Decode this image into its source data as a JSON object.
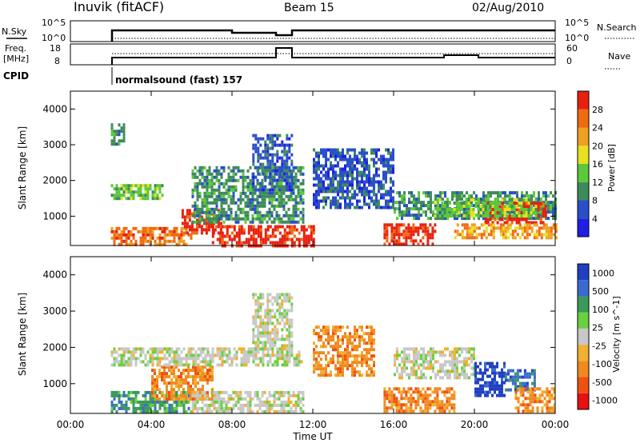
{
  "header": {
    "station": "Inuvik (fitACF)",
    "beam": "Beam 15",
    "date": "02/Aug/2010"
  },
  "top_panels": {
    "nsky_label": "N.Sky",
    "nsky_ticks": [
      "10^5",
      "10^0"
    ],
    "nsearch_label": "N.Search",
    "nsearch_ticks": [
      "10^5",
      "10^0"
    ],
    "freq_label_1": "Freq.",
    "freq_label_2": "[MHz]",
    "freq_ticks": [
      "18",
      "8"
    ],
    "nave_label": "Nave",
    "nave_ticks": [
      "60",
      "0"
    ],
    "cpid_label": "CPID",
    "cpid_text": "normalsound (fast) 157"
  },
  "colors": {
    "power": [
      "#1e1ee6",
      "#2a4fc8",
      "#3e8c5a",
      "#5cc83c",
      "#e8e020",
      "#f0a020",
      "#f06a10",
      "#e82010"
    ],
    "velocity": [
      "#e81010",
      "#f05010",
      "#f08a20",
      "#f0b030",
      "#c8c8c8",
      "#6ad040",
      "#3a9a5a",
      "#3a6ad0",
      "#2040c0"
    ]
  },
  "chart_data": [
    {
      "type": "heatmap",
      "title": "Power",
      "xlabel": "",
      "ylabel": "Slant Range [km]",
      "xlim": [
        0,
        24
      ],
      "ylim": [
        180,
        4500
      ],
      "x_ticks": [
        "00:00",
        "04:00",
        "08:00",
        "12:00",
        "16:00",
        "20:00",
        "00:00"
      ],
      "y_ticks": [
        "1000",
        "2000",
        "3000",
        "4000"
      ],
      "colorbar_label": "Power [dB]",
      "colorbar_ticks": [
        "4",
        "8",
        "12",
        "16",
        "20",
        "24",
        "28"
      ],
      "bands": [
        {
          "t0": 2.0,
          "t1": 6.0,
          "r0": 250,
          "r1": 700,
          "level": 6
        },
        {
          "t0": 5.5,
          "t1": 7.5,
          "r0": 500,
          "r1": 1200,
          "level": 7
        },
        {
          "t0": 7.0,
          "t1": 12.0,
          "r0": 200,
          "r1": 750,
          "level": 7
        },
        {
          "t0": 2.0,
          "t1": 4.5,
          "r0": 1500,
          "r1": 1900,
          "level": 3
        },
        {
          "t0": 6.0,
          "t1": 11.5,
          "r0": 800,
          "r1": 2400,
          "level": 2
        },
        {
          "t0": 9.0,
          "t1": 11.0,
          "r0": 1700,
          "r1": 3300,
          "level": 1
        },
        {
          "t0": 15.5,
          "t1": 18.0,
          "r0": 200,
          "r1": 800,
          "level": 7
        },
        {
          "t0": 16.0,
          "t1": 24.0,
          "r0": 900,
          "r1": 1700,
          "level": 2
        },
        {
          "t0": 20.5,
          "t1": 23.5,
          "r0": 850,
          "r1": 1400,
          "level": 7
        },
        {
          "t0": 18.0,
          "t1": 23.0,
          "r0": 1000,
          "r1": 1500,
          "level": 3
        },
        {
          "t0": 2.0,
          "t1": 2.6,
          "r0": 3000,
          "r1": 3600,
          "level": 2
        },
        {
          "t0": 12.0,
          "t1": 16.0,
          "r0": 1200,
          "r1": 2900,
          "level": 1
        },
        {
          "t0": 19.0,
          "t1": 24.0,
          "r0": 400,
          "r1": 800,
          "level": 5
        }
      ]
    },
    {
      "type": "heatmap",
      "title": "Velocity",
      "xlabel": "Time UT",
      "ylabel": "Slant Range [km]",
      "xlim": [
        0,
        24
      ],
      "ylim": [
        180,
        4500
      ],
      "x_ticks": [
        "00:00",
        "04:00",
        "08:00",
        "12:00",
        "16:00",
        "20:00",
        "00:00"
      ],
      "y_ticks": [
        "1000",
        "2000",
        "3000",
        "4000"
      ],
      "colorbar_label": "Velocity [m s^-1]",
      "colorbar_ticks": [
        "1000",
        "500",
        "100",
        "25",
        "-25",
        "-100",
        "-500",
        "-1000"
      ],
      "bands": [
        {
          "t0": 2.0,
          "t1": 6.0,
          "r0": 200,
          "r1": 800,
          "level": 6
        },
        {
          "t0": 4.0,
          "t1": 7.0,
          "r0": 600,
          "r1": 1500,
          "level": 2
        },
        {
          "t0": 6.0,
          "t1": 11.5,
          "r0": 200,
          "r1": 800,
          "level": 4
        },
        {
          "t0": 2.0,
          "t1": 11.5,
          "r0": 1500,
          "r1": 2000,
          "level": 4
        },
        {
          "t0": 9.0,
          "t1": 11.0,
          "r0": 2000,
          "r1": 3500,
          "level": 4
        },
        {
          "t0": 15.5,
          "t1": 19.0,
          "r0": 200,
          "r1": 900,
          "level": 2
        },
        {
          "t0": 16.0,
          "t1": 20.0,
          "r0": 1200,
          "r1": 2000,
          "level": 4
        },
        {
          "t0": 20.0,
          "t1": 21.5,
          "r0": 700,
          "r1": 1600,
          "level": 8
        },
        {
          "t0": 21.5,
          "t1": 23.0,
          "r0": 800,
          "r1": 1400,
          "level": 7
        },
        {
          "t0": 22.0,
          "t1": 24.0,
          "r0": 250,
          "r1": 900,
          "level": 2
        },
        {
          "t0": 12.0,
          "t1": 15.0,
          "r0": 1200,
          "r1": 2600,
          "level": 2
        }
      ]
    }
  ]
}
